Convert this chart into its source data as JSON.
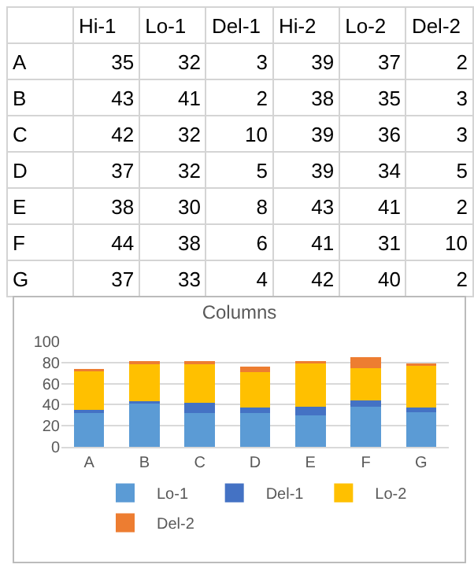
{
  "chart_data": [
    {
      "type": "heatmap",
      "data_labels": true,
      "categories": [
        "Hi-1",
        "Lo-1",
        "Del-1",
        "Hi-2",
        "Lo-2",
        "Del-2"
      ],
      "y_categories": [
        "A",
        "B",
        "C",
        "D",
        "E",
        "F",
        "G"
      ],
      "cells": [
        [
          35,
          32,
          3,
          39,
          37,
          2
        ],
        [
          43,
          41,
          2,
          38,
          35,
          3
        ],
        [
          42,
          32,
          10,
          39,
          36,
          3
        ],
        [
          37,
          32,
          5,
          39,
          34,
          5
        ],
        [
          38,
          30,
          8,
          43,
          41,
          2
        ],
        [
          44,
          38,
          6,
          41,
          31,
          10
        ],
        [
          37,
          33,
          4,
          42,
          40,
          2
        ]
      ]
    },
    {
      "type": "bar",
      "title": "Columns",
      "stacked": true,
      "categories": [
        "A",
        "B",
        "C",
        "D",
        "E",
        "F",
        "G"
      ],
      "series": [
        {
          "name": "Lo-1",
          "color": "#5b9bd5",
          "values": [
            32,
            41,
            32,
            32,
            30,
            38,
            33
          ]
        },
        {
          "name": "Del-1",
          "color": "#4472c4",
          "values": [
            3,
            2,
            10,
            5,
            8,
            6,
            4
          ]
        },
        {
          "name": "Lo-2",
          "color": "#ffc000",
          "values": [
            37,
            35,
            36,
            34,
            41,
            31,
            40
          ]
        },
        {
          "name": "Del-2",
          "color": "#ed7d31",
          "values": [
            2,
            3,
            3,
            5,
            2,
            10,
            2
          ]
        }
      ],
      "ylim": [
        0,
        100
      ],
      "yticks": [
        0,
        20,
        40,
        60,
        80,
        100
      ],
      "grid": "y",
      "legend": "bottom"
    }
  ]
}
